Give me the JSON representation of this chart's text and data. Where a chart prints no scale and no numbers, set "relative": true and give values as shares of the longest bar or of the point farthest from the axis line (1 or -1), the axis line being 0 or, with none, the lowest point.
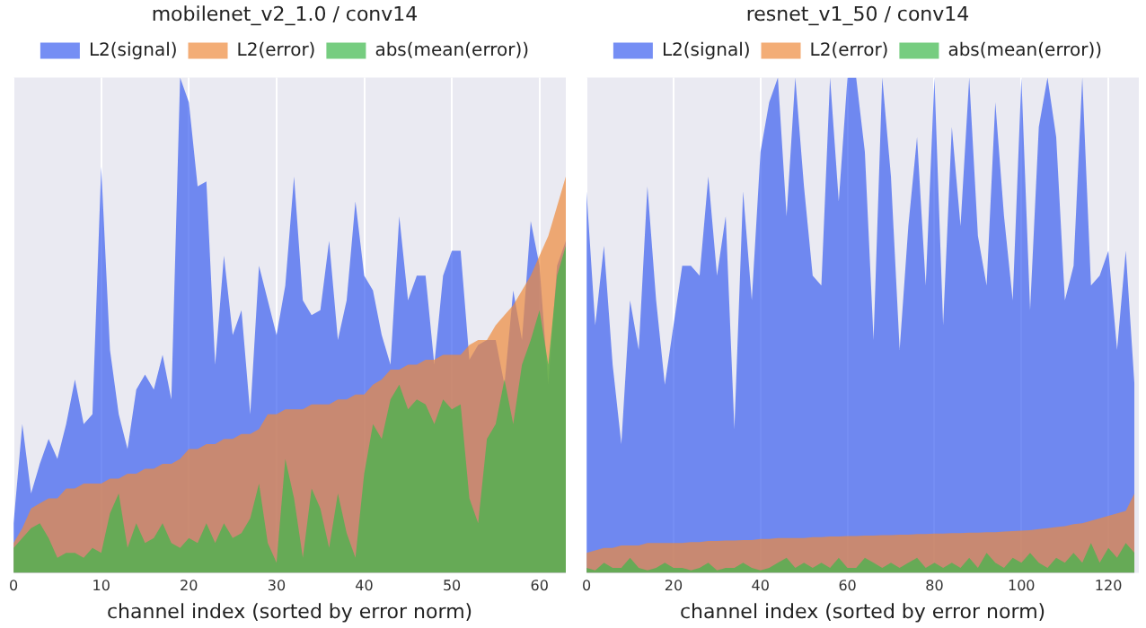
{
  "chart_data": [
    {
      "type": "area",
      "title": "mobilenet_v2_1.0 / conv14",
      "xlabel": "channel index (sorted by error norm)",
      "relative": true,
      "grid": "x",
      "legend": "top",
      "xlim": [
        0,
        63
      ],
      "xticks": [
        0,
        10,
        20,
        30,
        40,
        50,
        60
      ],
      "x": [
        0,
        1,
        2,
        3,
        4,
        5,
        6,
        7,
        8,
        9,
        10,
        11,
        12,
        13,
        14,
        15,
        16,
        17,
        18,
        19,
        20,
        21,
        22,
        23,
        24,
        25,
        26,
        27,
        28,
        29,
        30,
        31,
        32,
        33,
        34,
        35,
        36,
        37,
        38,
        39,
        40,
        41,
        42,
        43,
        44,
        45,
        46,
        47,
        48,
        49,
        50,
        51,
        52,
        53,
        54,
        55,
        56,
        57,
        58,
        59,
        60,
        61,
        62,
        63
      ],
      "series": [
        {
          "name": "L2(signal)",
          "color": "#3a5ef0",
          "values": [
            0.1,
            0.3,
            0.16,
            0.22,
            0.27,
            0.23,
            0.3,
            0.39,
            0.3,
            0.32,
            0.82,
            0.45,
            0.32,
            0.25,
            0.37,
            0.4,
            0.37,
            0.44,
            0.35,
            1,
            0.95,
            0.78,
            0.79,
            0.42,
            0.64,
            0.48,
            0.53,
            0.32,
            0.62,
            0.55,
            0.48,
            0.58,
            0.8,
            0.55,
            0.52,
            0.53,
            0.67,
            0.47,
            0.55,
            0.75,
            0.6,
            0.57,
            0.48,
            0.42,
            0.72,
            0.55,
            0.6,
            0.6,
            0.42,
            0.6,
            0.65,
            0.65,
            0.43,
            0.46,
            0.47,
            0.47,
            0.38,
            0.57,
            0.47,
            0.71,
            0.62,
            0.38,
            0.62,
            0.67
          ]
        },
        {
          "name": "L2(error)",
          "color": "#ee8a3c",
          "values": [
            0.06,
            0.09,
            0.13,
            0.14,
            0.15,
            0.15,
            0.17,
            0.17,
            0.18,
            0.18,
            0.18,
            0.19,
            0.19,
            0.2,
            0.2,
            0.21,
            0.21,
            0.22,
            0.22,
            0.23,
            0.25,
            0.25,
            0.26,
            0.26,
            0.27,
            0.27,
            0.28,
            0.28,
            0.29,
            0.32,
            0.32,
            0.33,
            0.33,
            0.33,
            0.34,
            0.34,
            0.34,
            0.35,
            0.35,
            0.36,
            0.36,
            0.38,
            0.39,
            0.41,
            0.41,
            0.42,
            0.42,
            0.43,
            0.43,
            0.44,
            0.44,
            0.44,
            0.46,
            0.47,
            0.47,
            0.5,
            0.52,
            0.54,
            0.57,
            0.6,
            0.64,
            0.68,
            0.74,
            0.8
          ]
        },
        {
          "name": "abs(mean(error))",
          "color": "#3cb84a",
          "values": [
            0.05,
            0.07,
            0.09,
            0.1,
            0.07,
            0.03,
            0.04,
            0.04,
            0.03,
            0.05,
            0.04,
            0.12,
            0.16,
            0.05,
            0.1,
            0.06,
            0.07,
            0.1,
            0.06,
            0.05,
            0.07,
            0.06,
            0.1,
            0.06,
            0.1,
            0.07,
            0.08,
            0.11,
            0.18,
            0.06,
            0.02,
            0.23,
            0.15,
            0.03,
            0.17,
            0.13,
            0.05,
            0.16,
            0.08,
            0.03,
            0.2,
            0.3,
            0.27,
            0.35,
            0.38,
            0.33,
            0.35,
            0.34,
            0.3,
            0.35,
            0.33,
            0.34,
            0.15,
            0.1,
            0.27,
            0.3,
            0.39,
            0.3,
            0.42,
            0.47,
            0.53,
            0.42,
            0.6,
            0.66
          ]
        }
      ]
    },
    {
      "type": "area",
      "title": "resnet_v1_50 / conv14",
      "xlabel": "channel index (sorted by error norm)",
      "relative": true,
      "grid": "x",
      "legend": "top",
      "xlim": [
        0,
        127
      ],
      "xticks": [
        0,
        20,
        40,
        60,
        80,
        100,
        120
      ],
      "x": [
        0,
        2,
        4,
        6,
        8,
        10,
        12,
        14,
        16,
        18,
        20,
        22,
        24,
        26,
        28,
        30,
        32,
        34,
        36,
        38,
        40,
        42,
        44,
        46,
        48,
        50,
        52,
        54,
        56,
        58,
        60,
        62,
        64,
        66,
        68,
        70,
        72,
        74,
        76,
        78,
        80,
        82,
        84,
        86,
        88,
        90,
        92,
        94,
        96,
        98,
        100,
        102,
        104,
        106,
        108,
        110,
        112,
        114,
        116,
        118,
        120,
        122,
        124,
        126
      ],
      "series": [
        {
          "name": "L2(signal)",
          "color": "#3a5ef0",
          "values": [
            0.77,
            0.5,
            0.66,
            0.42,
            0.26,
            0.55,
            0.45,
            0.78,
            0.55,
            0.38,
            0.5,
            0.62,
            0.62,
            0.6,
            0.8,
            0.6,
            0.72,
            0.29,
            0.77,
            0.55,
            0.85,
            0.95,
            1,
            0.72,
            1,
            0.78,
            0.6,
            0.58,
            1,
            0.75,
            1,
            1,
            0.85,
            0.47,
            1,
            0.8,
            0.45,
            0.7,
            0.88,
            0.58,
            1,
            0.5,
            0.9,
            0.7,
            1,
            0.68,
            0.58,
            0.95,
            0.72,
            0.55,
            1,
            0.53,
            0.9,
            1,
            0.88,
            0.55,
            0.62,
            1,
            0.58,
            0.6,
            0.65,
            0.45,
            0.65,
            0.38
          ]
        },
        {
          "name": "L2(error)",
          "color": "#ee8a3c",
          "values": [
            0.04,
            0.045,
            0.05,
            0.05,
            0.055,
            0.055,
            0.055,
            0.06,
            0.06,
            0.06,
            0.06,
            0.06,
            0.062,
            0.062,
            0.064,
            0.064,
            0.065,
            0.065,
            0.066,
            0.066,
            0.068,
            0.068,
            0.07,
            0.07,
            0.07,
            0.07,
            0.072,
            0.072,
            0.073,
            0.073,
            0.074,
            0.074,
            0.075,
            0.075,
            0.076,
            0.076,
            0.077,
            0.077,
            0.078,
            0.078,
            0.079,
            0.079,
            0.08,
            0.08,
            0.081,
            0.081,
            0.082,
            0.082,
            0.083,
            0.084,
            0.085,
            0.086,
            0.088,
            0.09,
            0.092,
            0.094,
            0.098,
            0.1,
            0.105,
            0.11,
            0.115,
            0.12,
            0.125,
            0.16
          ]
        },
        {
          "name": "abs(mean(error))",
          "color": "#3cb84a",
          "values": [
            0.01,
            0.005,
            0.02,
            0.01,
            0.01,
            0.03,
            0.01,
            0.005,
            0.01,
            0.02,
            0.01,
            0.01,
            0.005,
            0.01,
            0.02,
            0.005,
            0.01,
            0.01,
            0.02,
            0.01,
            0.005,
            0.01,
            0.02,
            0.03,
            0.01,
            0.02,
            0.01,
            0.02,
            0.01,
            0.03,
            0.01,
            0.01,
            0.03,
            0.02,
            0.01,
            0.02,
            0.01,
            0.02,
            0.03,
            0.01,
            0.02,
            0.01,
            0.02,
            0.01,
            0.03,
            0.01,
            0.04,
            0.02,
            0.01,
            0.03,
            0.02,
            0.04,
            0.02,
            0.01,
            0.03,
            0.02,
            0.04,
            0.02,
            0.06,
            0.02,
            0.05,
            0.03,
            0.06,
            0.04
          ]
        }
      ]
    }
  ]
}
